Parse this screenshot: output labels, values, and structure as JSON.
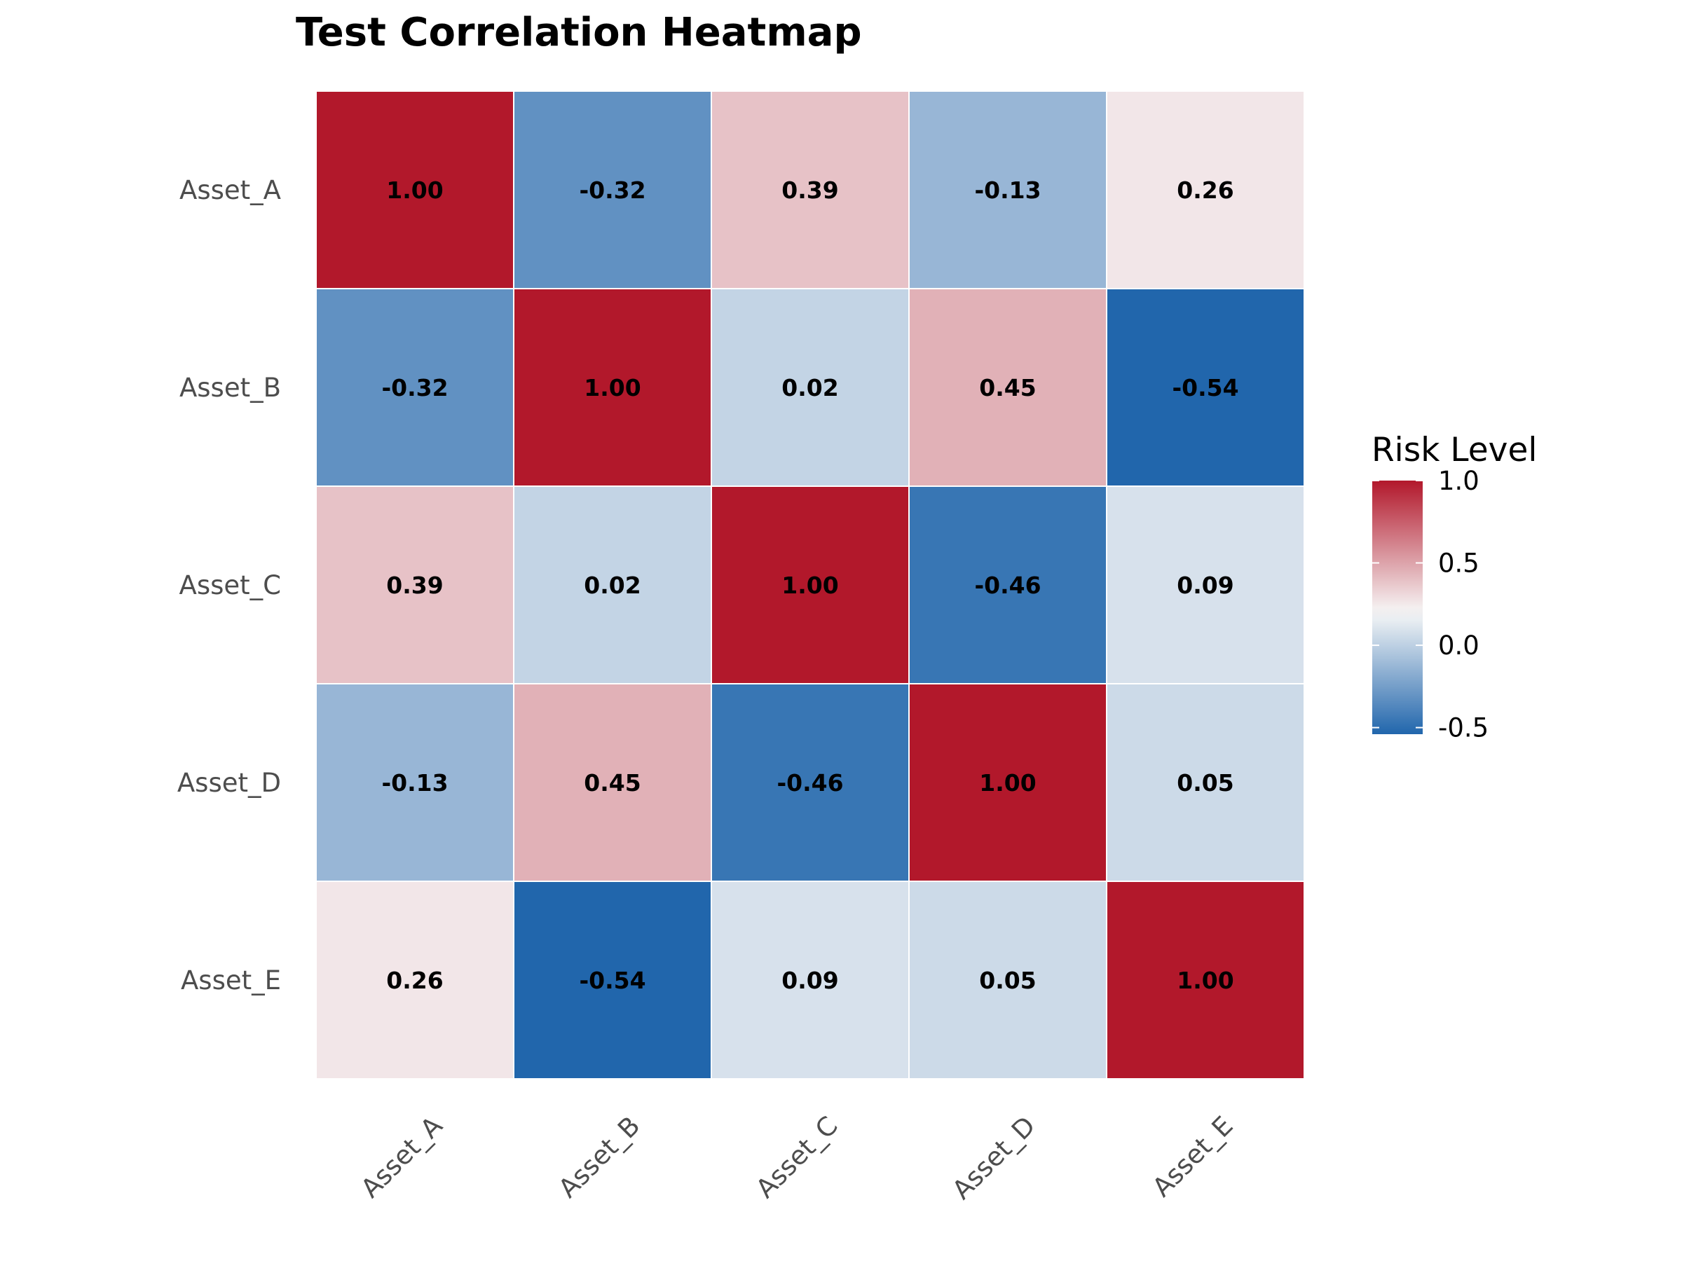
{
  "chart_data": {
    "type": "heatmap",
    "title": "Test Correlation Heatmap",
    "xlabel": "",
    "ylabel": "",
    "x_categories": [
      "Asset_A",
      "Asset_B",
      "Asset_C",
      "Asset_D",
      "Asset_E"
    ],
    "y_categories": [
      "Asset_A",
      "Asset_B",
      "Asset_C",
      "Asset_D",
      "Asset_E"
    ],
    "values": [
      [
        1.0,
        -0.32,
        0.39,
        -0.13,
        0.26
      ],
      [
        -0.32,
        1.0,
        0.02,
        0.45,
        -0.54
      ],
      [
        0.39,
        0.02,
        1.0,
        -0.46,
        0.09
      ],
      [
        -0.13,
        0.45,
        -0.46,
        1.0,
        0.05
      ],
      [
        0.26,
        -0.54,
        0.09,
        0.05,
        1.0
      ]
    ],
    "cell_labels": [
      [
        "1.00",
        "-0.32",
        "0.39",
        "-0.13",
        "0.26"
      ],
      [
        "-0.32",
        "1.00",
        "0.02",
        "0.45",
        "-0.54"
      ],
      [
        "0.39",
        "0.02",
        "1.00",
        "-0.46",
        "0.09"
      ],
      [
        "-0.13",
        "0.45",
        "-0.46",
        "1.00",
        "0.05"
      ],
      [
        "0.26",
        "-0.54",
        "0.09",
        "0.05",
        "1.00"
      ]
    ],
    "legend": {
      "title": "Risk Level",
      "placement": "right",
      "range": [
        -0.54,
        1.0
      ],
      "midpoint": 0.2,
      "ticks": [
        1.0,
        0.5,
        0.0,
        -0.5
      ],
      "tick_labels": [
        "1.0",
        "0.5",
        "0.0",
        "-0.5"
      ]
    },
    "colors": {
      "low": "#2166ac",
      "mid": "#f7f7f7",
      "high": "#b2182b",
      "cell_border": "#ffffff"
    },
    "grid": false,
    "x_tick_rotation": "45-degrees"
  }
}
